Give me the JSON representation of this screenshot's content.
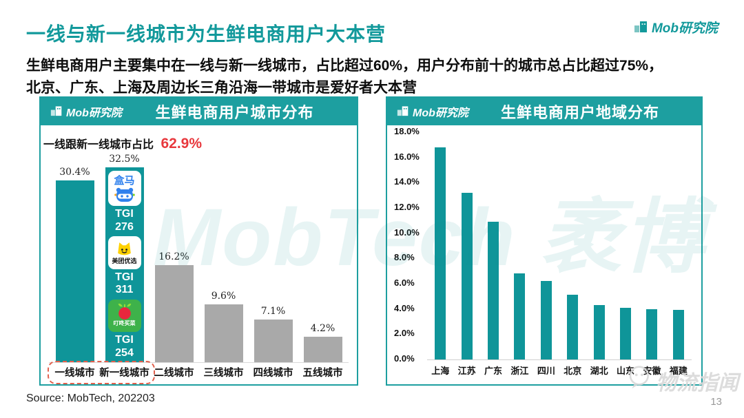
{
  "page": {
    "title": "一线与新一线城市为生鲜电商用户大本营",
    "subtitle_line1": "生鲜电商用户主要集中在一线与新一线城市，占比超过60%，用户分布前十的城市总占比超过75%，",
    "subtitle_line2": "北京、广东、上海及周边长三角沿海一带城市是爱好者大本营",
    "brand": "Mob研究院",
    "source": "Source: MobTech, 202203",
    "page_number": "13",
    "watermark_center": "MobTech 袤博",
    "watermark_corner": "物流指闻"
  },
  "colors": {
    "teal_title": "#12999b",
    "teal_header": "#1d9fa0",
    "teal_bar": "#0f9599",
    "gray_bar": "#a9a9a9",
    "red_accent": "#e8383d",
    "dashed_box": "#e2604d"
  },
  "left_chart": {
    "header": {
      "logo": "Mob研究院",
      "title": "生鲜电商用户城市分布"
    },
    "annotation": {
      "label": "一线跟新一线城市占比",
      "value": "62.9%"
    },
    "apps": [
      {
        "name": "盒马",
        "tgi_prefix": "TGI",
        "tgi": "276",
        "icon": "hema-app-icon"
      },
      {
        "name": "美团优选",
        "tgi_prefix": "TGI",
        "tgi": "311",
        "icon": "meituan-youxuan-app-icon"
      },
      {
        "name": "叮咚买菜",
        "tgi_prefix": "TGI",
        "tgi": "254",
        "icon": "dingdong-maicai-app-icon"
      }
    ]
  },
  "right_chart": {
    "header": {
      "logo": "Mob研究院",
      "title": "生鲜电商用户地域分布"
    }
  },
  "chart_data": [
    {
      "type": "bar",
      "title": "生鲜电商用户城市分布",
      "categories": [
        "一线城市",
        "新一线城市",
        "二线城市",
        "三线城市",
        "四线城市",
        "五线城市"
      ],
      "values": [
        30.4,
        32.5,
        16.2,
        9.6,
        7.1,
        4.2
      ],
      "labels": [
        "30.4%",
        "32.5%",
        "16.2%",
        "9.6%",
        "7.1%",
        "4.2%"
      ],
      "unit": "%",
      "highlight_first_n": 2,
      "annotation": "一线跟新一线城市占比 62.9%",
      "tgi_callouts": [
        {
          "app": "盒马",
          "tgi": 276
        },
        {
          "app": "美团优选",
          "tgi": 311
        },
        {
          "app": "叮咚买菜",
          "tgi": 254
        }
      ],
      "grid": false,
      "legend_position": "none"
    },
    {
      "type": "bar",
      "title": "生鲜电商用户地域分布",
      "categories": [
        "上海",
        "江苏",
        "广东",
        "浙江",
        "四川",
        "北京",
        "湖北",
        "山东",
        "安徽",
        "福建"
      ],
      "values": [
        16.8,
        13.2,
        10.9,
        6.8,
        6.2,
        5.1,
        4.3,
        4.1,
        4.0,
        3.9
      ],
      "unit": "%",
      "ylim": [
        0,
        18
      ],
      "ytick_labels": [
        "0.0%",
        "2.0%",
        "4.0%",
        "6.0%",
        "8.0%",
        "10.0%",
        "12.0%",
        "14.0%",
        "16.0%",
        "18.0%"
      ],
      "grid": false,
      "legend_position": "none"
    }
  ]
}
